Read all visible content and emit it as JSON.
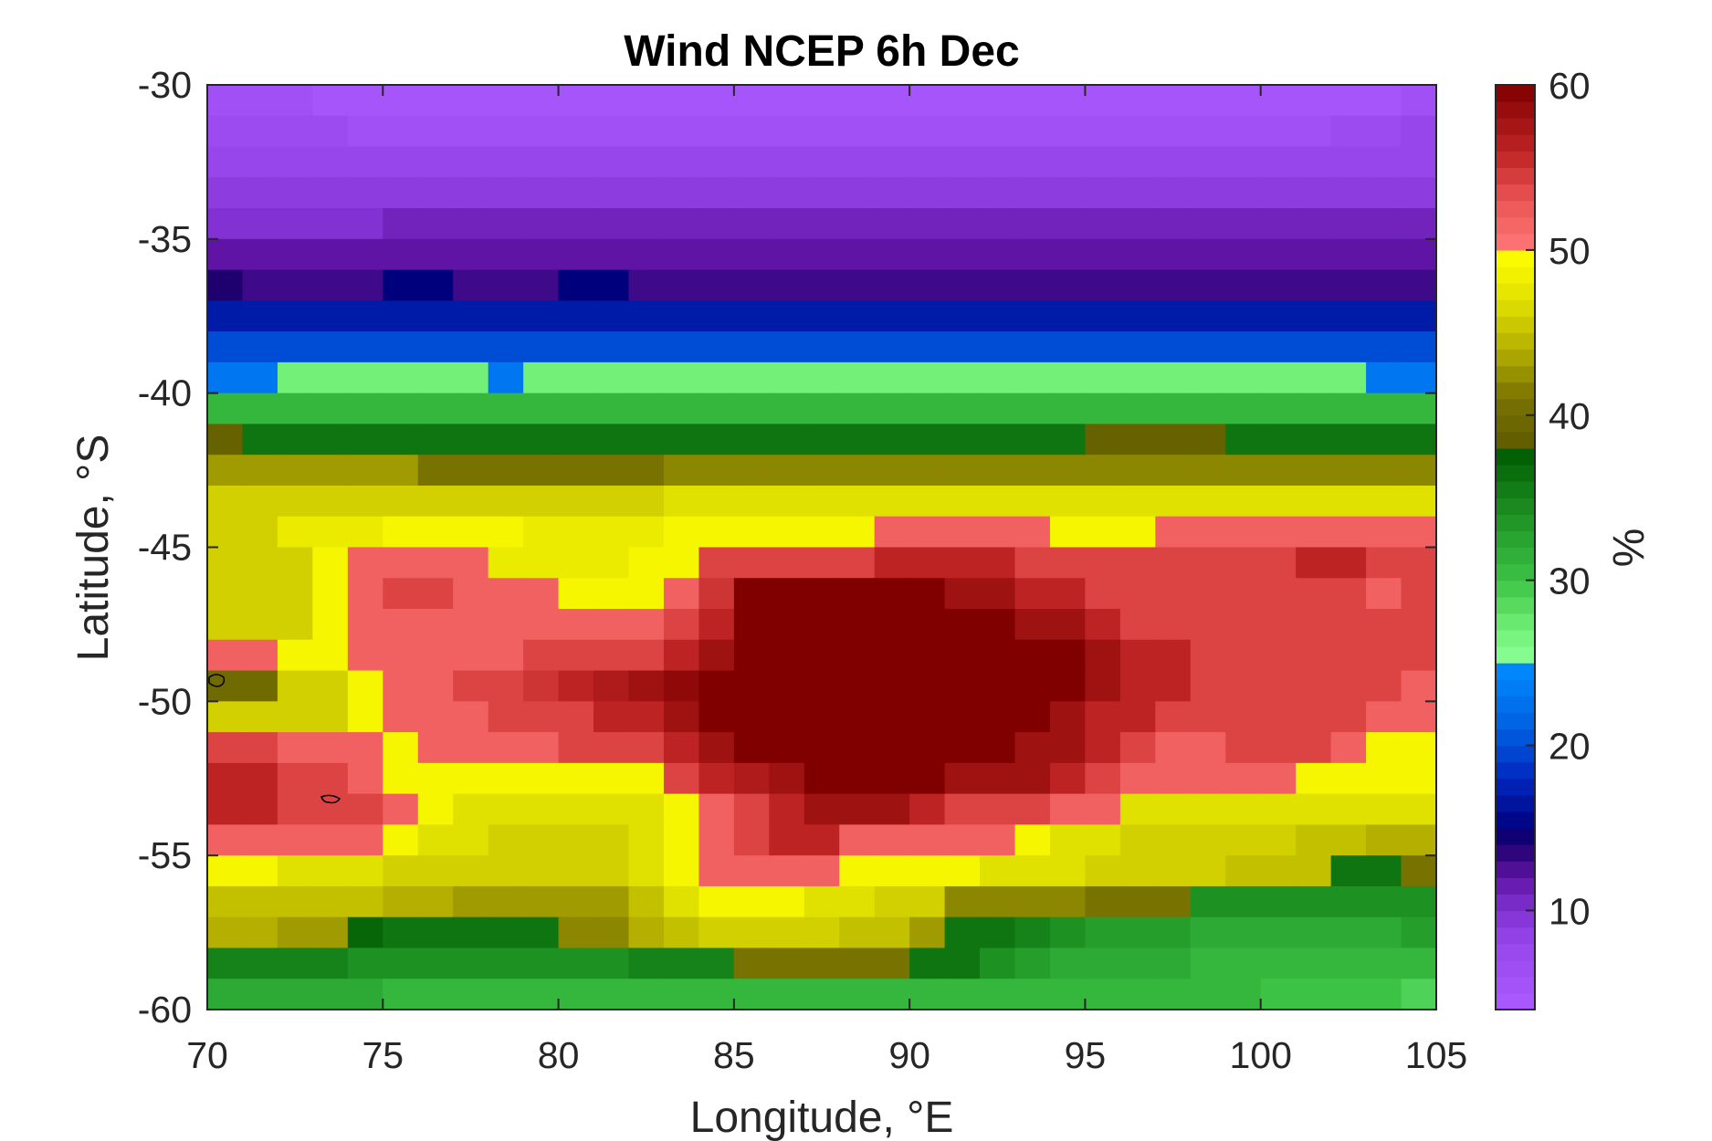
{
  "chart_data": {
    "type": "heatmap",
    "title": "Wind NCEP 6h Dec",
    "xlabel": "Longitude, °E",
    "ylabel": "Latitude, °S",
    "colorbar_label": "%",
    "xlim": [
      70,
      105
    ],
    "ylim": [
      -60,
      -30
    ],
    "xticks": [
      70,
      75,
      80,
      85,
      90,
      95,
      100,
      105
    ],
    "yticks": [
      -30,
      -35,
      -40,
      -45,
      -50,
      -55,
      -60
    ],
    "colorbar_ticks": [
      10,
      20,
      30,
      40,
      50,
      60
    ],
    "colorbar_range": [
      4,
      60
    ],
    "cell_lon_step": 1,
    "cell_lat_step": 1,
    "row_lat_tops": [
      -30,
      -31,
      -32,
      -33,
      -34,
      -35,
      -36,
      -37,
      -38,
      -39,
      -40,
      -41,
      -42,
      -43,
      -44,
      -45,
      -46,
      -47,
      -48,
      -49,
      -50,
      -51,
      -52,
      -53,
      -54,
      -55,
      -56,
      -57,
      -58,
      -59
    ],
    "row_values": [
      [
        6,
        6,
        6,
        5,
        5,
        5,
        5,
        5,
        5,
        5,
        5,
        5,
        5,
        5,
        5,
        5,
        5,
        5,
        5,
        5,
        5,
        5,
        5,
        5,
        5,
        5,
        5,
        5,
        5,
        5,
        5,
        5,
        5,
        5,
        6
      ],
      [
        7,
        7,
        7,
        7,
        6,
        6,
        6,
        6,
        6,
        6,
        6,
        6,
        6,
        6,
        6,
        6,
        6,
        6,
        6,
        6,
        6,
        6,
        6,
        6,
        6,
        6,
        6,
        6,
        6,
        6,
        6,
        6,
        7,
        7,
        8
      ],
      [
        8,
        8,
        8,
        8,
        8,
        8,
        8,
        8,
        8,
        8,
        8,
        8,
        8,
        8,
        8,
        8,
        8,
        8,
        8,
        8,
        8,
        8,
        8,
        8,
        8,
        8,
        8,
        8,
        8,
        8,
        8,
        8,
        8,
        8,
        8
      ],
      [
        9,
        9,
        9,
        9,
        9,
        9,
        9,
        9,
        9,
        9,
        9,
        9,
        9,
        9,
        9,
        9,
        9,
        9,
        9,
        9,
        9,
        9,
        9,
        9,
        9,
        9,
        9,
        9,
        9,
        9,
        9,
        9,
        9,
        9,
        9
      ],
      [
        10,
        10,
        10,
        10,
        10,
        11,
        11,
        11,
        11,
        11,
        11,
        11,
        11,
        11,
        11,
        11,
        11,
        11,
        11,
        11,
        11,
        11,
        11,
        11,
        11,
        11,
        11,
        11,
        11,
        11,
        11,
        11,
        11,
        11,
        11
      ],
      [
        12,
        12,
        12,
        12,
        12,
        12,
        12,
        12,
        12,
        12,
        12,
        12,
        12,
        12,
        12,
        12,
        12,
        12,
        12,
        12,
        12,
        12,
        12,
        12,
        12,
        12,
        12,
        12,
        12,
        12,
        12,
        12,
        12,
        12,
        12
      ],
      [
        14,
        13,
        13,
        13,
        13,
        15,
        15,
        13,
        13,
        13,
        15,
        15,
        13,
        13,
        13,
        13,
        13,
        13,
        13,
        13,
        13,
        13,
        13,
        13,
        13,
        13,
        13,
        13,
        13,
        13,
        13,
        13,
        13,
        13,
        13
      ],
      [
        17,
        17,
        17,
        17,
        17,
        17,
        17,
        17,
        17,
        17,
        17,
        17,
        17,
        17,
        17,
        17,
        17,
        17,
        17,
        17,
        17,
        17,
        17,
        17,
        17,
        17,
        17,
        17,
        17,
        17,
        17,
        17,
        17,
        17,
        17
      ],
      [
        20,
        20,
        20,
        20,
        20,
        20,
        20,
        20,
        20,
        20,
        20,
        20,
        20,
        20,
        20,
        20,
        20,
        20,
        20,
        20,
        20,
        20,
        20,
        20,
        20,
        20,
        20,
        20,
        20,
        20,
        20,
        20,
        20,
        20,
        20
      ],
      [
        23,
        23,
        27,
        27,
        27,
        27,
        27,
        27,
        23,
        27,
        27,
        27,
        27,
        27,
        27,
        27,
        27,
        27,
        27,
        27,
        27,
        27,
        27,
        27,
        27,
        27,
        27,
        27,
        27,
        27,
        27,
        27,
        27,
        23,
        23
      ],
      [
        31,
        31,
        31,
        31,
        31,
        31,
        31,
        31,
        31,
        31,
        31,
        31,
        31,
        31,
        31,
        31,
        31,
        31,
        31,
        31,
        31,
        31,
        31,
        31,
        31,
        31,
        31,
        31,
        31,
        31,
        31,
        31,
        31,
        31,
        31
      ],
      [
        39,
        36,
        36,
        36,
        36,
        36,
        36,
        36,
        36,
        36,
        36,
        36,
        36,
        36,
        36,
        36,
        36,
        36,
        36,
        36,
        36,
        36,
        36,
        36,
        36,
        39,
        39,
        39,
        39,
        36,
        36,
        36,
        36,
        36,
        36
      ],
      [
        43,
        43,
        43,
        43,
        43,
        43,
        41,
        41,
        41,
        41,
        41,
        41,
        41,
        42,
        42,
        42,
        42,
        42,
        42,
        42,
        42,
        42,
        42,
        42,
        42,
        42,
        42,
        42,
        42,
        42,
        42,
        42,
        42,
        42,
        42
      ],
      [
        46,
        46,
        46,
        46,
        46,
        46,
        46,
        46,
        46,
        46,
        46,
        46,
        46,
        47,
        47,
        47,
        47,
        47,
        47,
        47,
        47,
        47,
        47,
        47,
        47,
        47,
        47,
        47,
        47,
        47,
        47,
        47,
        47,
        47,
        47
      ],
      [
        46,
        46,
        48,
        48,
        48,
        49,
        49,
        49,
        49,
        48,
        48,
        48,
        48,
        49,
        49,
        49,
        49,
        49,
        49,
        52,
        52,
        52,
        52,
        52,
        49,
        49,
        49,
        52,
        52,
        52,
        52,
        52,
        52,
        52,
        52
      ],
      [
        46,
        46,
        46,
        49,
        52,
        52,
        52,
        52,
        48,
        48,
        48,
        48,
        49,
        49,
        54,
        54,
        54,
        54,
        54,
        56,
        56,
        56,
        56,
        54,
        54,
        54,
        54,
        54,
        54,
        54,
        54,
        56,
        56,
        54,
        54
      ],
      [
        46,
        46,
        46,
        49,
        52,
        54,
        54,
        52,
        52,
        52,
        49,
        49,
        49,
        52,
        55,
        60,
        60,
        60,
        60,
        60,
        60,
        58,
        58,
        56,
        56,
        54,
        54,
        54,
        54,
        54,
        54,
        54,
        54,
        52,
        54
      ],
      [
        46,
        46,
        46,
        49,
        52,
        52,
        52,
        52,
        52,
        52,
        52,
        52,
        52,
        54,
        56,
        60,
        60,
        60,
        60,
        60,
        60,
        60,
        60,
        58,
        58,
        56,
        54,
        54,
        54,
        54,
        54,
        54,
        54,
        54,
        54
      ],
      [
        52,
        52,
        49,
        49,
        52,
        52,
        52,
        52,
        52,
        54,
        54,
        54,
        54,
        56,
        58,
        60,
        60,
        60,
        60,
        60,
        60,
        60,
        60,
        60,
        60,
        58,
        56,
        56,
        54,
        54,
        54,
        54,
        54,
        54,
        54
      ],
      [
        40,
        40,
        46,
        46,
        49,
        52,
        52,
        54,
        54,
        55,
        56,
        57,
        58,
        59,
        60,
        60,
        60,
        60,
        60,
        60,
        60,
        60,
        60,
        60,
        60,
        58,
        56,
        56,
        54,
        54,
        54,
        54,
        54,
        54,
        52
      ],
      [
        46,
        46,
        46,
        46,
        49,
        52,
        52,
        52,
        54,
        54,
        54,
        56,
        56,
        58,
        60,
        60,
        60,
        60,
        60,
        60,
        60,
        60,
        60,
        60,
        58,
        56,
        56,
        54,
        54,
        54,
        54,
        54,
        54,
        52,
        52
      ],
      [
        54,
        54,
        52,
        52,
        52,
        49,
        52,
        52,
        52,
        52,
        54,
        54,
        54,
        56,
        58,
        60,
        60,
        60,
        60,
        60,
        60,
        60,
        60,
        58,
        58,
        56,
        54,
        52,
        52,
        54,
        54,
        54,
        52,
        49,
        49
      ],
      [
        56,
        56,
        54,
        54,
        52,
        49,
        49,
        49,
        49,
        49,
        49,
        49,
        49,
        54,
        56,
        57,
        58,
        60,
        60,
        60,
        60,
        58,
        58,
        58,
        56,
        54,
        52,
        52,
        52,
        52,
        52,
        49,
        49,
        49,
        49
      ],
      [
        56,
        56,
        54,
        54,
        54,
        52,
        49,
        47,
        47,
        47,
        47,
        47,
        47,
        49,
        52,
        54,
        56,
        58,
        58,
        58,
        56,
        54,
        54,
        54,
        52,
        52,
        47,
        47,
        47,
        47,
        47,
        47,
        47,
        47,
        47
      ],
      [
        52,
        52,
        52,
        52,
        52,
        49,
        47,
        47,
        46,
        46,
        46,
        46,
        47,
        49,
        52,
        54,
        56,
        56,
        52,
        52,
        52,
        52,
        52,
        49,
        47,
        47,
        46,
        46,
        46,
        46,
        46,
        45,
        45,
        44,
        44
      ],
      [
        49,
        49,
        47,
        47,
        47,
        46,
        46,
        46,
        46,
        46,
        46,
        46,
        47,
        49,
        52,
        52,
        52,
        52,
        49,
        49,
        49,
        49,
        47,
        47,
        47,
        46,
        46,
        46,
        46,
        45,
        45,
        45,
        36,
        36,
        41
      ],
      [
        45,
        45,
        45,
        45,
        45,
        44,
        44,
        43,
        43,
        43,
        43,
        43,
        45,
        47,
        49,
        49,
        49,
        47,
        47,
        46,
        46,
        42,
        42,
        42,
        42,
        41,
        41,
        41,
        34,
        34,
        34,
        34,
        34,
        34,
        34
      ],
      [
        44,
        44,
        43,
        43,
        37,
        36,
        36,
        36,
        36,
        36,
        42,
        42,
        44,
        45,
        46,
        46,
        46,
        46,
        45,
        45,
        43,
        36,
        36,
        35,
        34,
        33,
        33,
        33,
        32,
        32,
        32,
        32,
        32,
        32,
        33
      ],
      [
        35,
        35,
        35,
        35,
        34,
        34,
        34,
        34,
        34,
        34,
        34,
        34,
        35,
        35,
        35,
        41,
        41,
        41,
        41,
        41,
        36,
        36,
        34,
        33,
        32,
        32,
        32,
        32,
        31,
        31,
        31,
        31,
        31,
        31,
        31
      ],
      [
        32,
        32,
        32,
        32,
        32,
        31,
        31,
        31,
        31,
        31,
        31,
        31,
        31,
        31,
        31,
        31,
        31,
        31,
        31,
        31,
        31,
        31,
        31,
        31,
        31,
        31,
        31,
        31,
        31,
        31,
        30,
        30,
        30,
        30,
        29
      ]
    ]
  }
}
